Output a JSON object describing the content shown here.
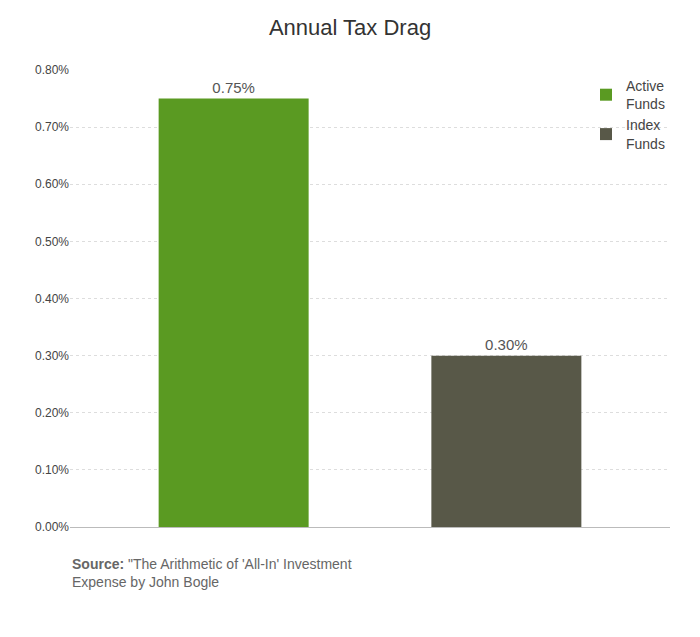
{
  "chart_data": {
    "type": "bar",
    "title": "Annual Tax Drag",
    "categories": [
      null,
      null
    ],
    "series": [
      {
        "name": "Active\nFunds",
        "color": "#5a9a22",
        "values": [
          0.0075,
          null
        ],
        "value_labels": [
          "0.75%",
          null
        ]
      },
      {
        "name": "Index\nFunds",
        "color": "#585848",
        "values": [
          null,
          0.003
        ],
        "value_labels": [
          null,
          "0.30%"
        ]
      }
    ],
    "ylim": [
      0,
      0.008
    ],
    "yticks": [
      {
        "value": 0.0,
        "label": "0.00%"
      },
      {
        "value": 0.001,
        "label": "0.10%"
      },
      {
        "value": 0.002,
        "label": "0.20%"
      },
      {
        "value": 0.003,
        "label": "0.30%"
      },
      {
        "value": 0.004,
        "label": "0.40%"
      },
      {
        "value": 0.005,
        "label": "0.50%"
      },
      {
        "value": 0.006,
        "label": "0.60%"
      },
      {
        "value": 0.007,
        "label": "0.70%"
      },
      {
        "value": 0.008,
        "label": "0.80%"
      }
    ],
    "annotations": [
      "Source:",
      "\"The Arithmetic of 'All-In' Investment\nExpense by John Bogle"
    ],
    "grid": true,
    "legend": "upper right",
    "data_labels": true,
    "tick_labels": "y"
  }
}
